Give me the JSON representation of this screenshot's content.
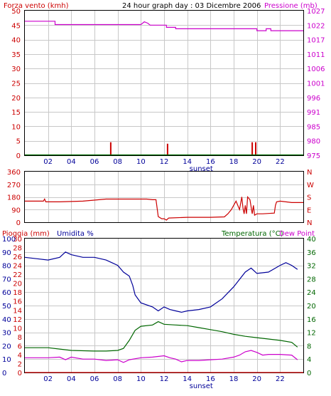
{
  "colors": {
    "wind": "#cc0000",
    "pressure": "#cc00cc",
    "direction": "#cc0000",
    "rain": "#cc0000",
    "humidity": "#000099",
    "temperature": "#006600",
    "dewpoint": "#cc00cc",
    "wind_base": "#006600"
  },
  "header": {
    "wind_label": "Forza vento (kmh)",
    "title": "24 hour graph day : 03 Dicembre 2006",
    "pressure_label": "Pressione (mb)"
  },
  "x_axis": {
    "ticks": [
      "02",
      "04",
      "06",
      "08",
      "10",
      "12",
      "14",
      "16",
      "18",
      "20",
      "22"
    ],
    "tick_values": [
      2,
      4,
      6,
      8,
      10,
      12,
      14,
      16,
      18,
      20,
      22
    ],
    "marker_label": "sunset"
  },
  "bottom_labels": {
    "rain": "Pioggia (mm)",
    "humidity": "Umidita %",
    "temperature": "Temperatura (°C)",
    "dewpoint": "Dew Point"
  },
  "chart_data": [
    {
      "type": "line",
      "name": "wind-pressure",
      "xlim": [
        0,
        24
      ],
      "left_axis": {
        "label": "Forza vento (kmh)",
        "ylim": [
          0,
          50
        ],
        "ticks": [
          "0",
          "5",
          "10",
          "15",
          "20",
          "25",
          "30",
          "35",
          "40",
          "45",
          "50"
        ]
      },
      "right_axis": {
        "label": "Pressione (mb)",
        "ylim": [
          975,
          1027
        ],
        "ticks": [
          "975",
          "980",
          "985",
          "991",
          "996",
          "1001",
          "1006",
          "1011",
          "1017",
          "1022",
          "1027"
        ]
      },
      "grid": true,
      "series": [
        {
          "name": "Pressione (mb)",
          "axis": "right",
          "x": [
            0,
            2.6,
            2.6,
            10.0,
            10.3,
            10.6,
            10.8,
            11.0,
            12.2,
            12.2,
            13.0,
            13.0,
            20.0,
            20.0,
            20.8,
            20.8,
            21.2,
            21.2,
            24
          ],
          "y": [
            1023.2,
            1023.2,
            1022.0,
            1022.0,
            1023.0,
            1022.5,
            1021.8,
            1021.8,
            1021.8,
            1021.0,
            1021.0,
            1020.5,
            1020.5,
            1019.8,
            1019.8,
            1020.5,
            1020.5,
            1019.8,
            1019.8
          ]
        },
        {
          "name": "Forza vento (kmh)",
          "axis": "left",
          "type": "bar",
          "x": [
            7.4,
            12.3,
            19.6,
            19.9
          ],
          "y": [
            4.5,
            4.0,
            4.5,
            4.5
          ]
        }
      ]
    },
    {
      "type": "line",
      "name": "wind-direction",
      "xlim": [
        0,
        24
      ],
      "left_axis": {
        "ylim": [
          0,
          360
        ],
        "ticks": [
          "0",
          "90",
          "180",
          "270",
          "360"
        ]
      },
      "right_axis": {
        "ticks": [
          "N",
          "E",
          "S",
          "W",
          "N"
        ]
      },
      "grid": true,
      "series": [
        {
          "name": "direction",
          "x": [
            0,
            1.6,
            1.7,
            1.8,
            3.0,
            5.0,
            7.0,
            8.0,
            9.0,
            10.0,
            10.5,
            11.0,
            11.3,
            11.5,
            11.8,
            12.0,
            12.2,
            12.4,
            14.0,
            16.0,
            17.2,
            17.5,
            17.8,
            18.0,
            18.2,
            18.5,
            18.7,
            18.8,
            18.9,
            19.0,
            19.1,
            19.2,
            19.4,
            19.6,
            19.7,
            19.8,
            20.0,
            20.5,
            21.5,
            21.6,
            21.7,
            22.0,
            23.0,
            24
          ],
          "y": [
            150,
            150,
            165,
            145,
            145,
            150,
            165,
            165,
            165,
            165,
            165,
            160,
            160,
            40,
            25,
            25,
            15,
            30,
            35,
            35,
            38,
            60,
            90,
            120,
            150,
            90,
            180,
            100,
            60,
            120,
            60,
            180,
            160,
            60,
            120,
            50,
            60,
            60,
            65,
            120,
            145,
            150,
            140,
            140
          ]
        }
      ]
    },
    {
      "type": "line",
      "name": "rain-humidity-temperature",
      "xlim": [
        0,
        24
      ],
      "left_axis_1": {
        "label": "Pioggia (mm)",
        "ylim": [
          0,
          30
        ],
        "ticks": [
          "0",
          "2",
          "4",
          "6",
          "8",
          "10",
          "12",
          "14",
          "16",
          "18",
          "20",
          "22",
          "24",
          "26",
          "28",
          "30"
        ]
      },
      "left_axis_2": {
        "label": "Umidita %",
        "ylim": [
          0,
          100
        ],
        "ticks": [
          "0",
          "10",
          "20",
          "30",
          "40",
          "50",
          "60",
          "70",
          "80",
          "90",
          "100"
        ]
      },
      "right_axis": {
        "label": "Temperatura (°C)",
        "ylim": [
          0,
          40
        ],
        "ticks": [
          "0",
          "4",
          "8",
          "12",
          "16",
          "20",
          "24",
          "28",
          "32",
          "36",
          "40"
        ]
      },
      "grid": true,
      "series": [
        {
          "name": "Umidita %",
          "axis": "humidity",
          "x": [
            0,
            1.0,
            2.0,
            3.0,
            3.5,
            4.0,
            5.0,
            6.0,
            7.0,
            7.5,
            8.0,
            8.5,
            9.0,
            9.3,
            9.5,
            10.0,
            11.0,
            11.5,
            12.0,
            12.5,
            13.0,
            13.5,
            14.0,
            15.0,
            16.0,
            17.0,
            18.0,
            19.0,
            19.5,
            20.0,
            21.0,
            22.0,
            22.5,
            23.0,
            23.5
          ],
          "y": [
            86,
            85,
            84,
            86,
            90,
            88,
            86,
            86,
            84,
            82,
            80,
            75,
            72,
            65,
            58,
            52,
            49,
            46,
            49,
            47,
            46,
            45,
            46,
            47,
            49,
            55,
            64,
            75,
            78,
            74,
            75,
            80,
            82,
            80,
            77
          ]
        },
        {
          "name": "Temperatura (°C)",
          "axis": "temperature",
          "x": [
            0,
            2.0,
            3.0,
            4.0,
            6.0,
            7.0,
            8.0,
            8.5,
            9.0,
            9.5,
            10.0,
            11.0,
            11.5,
            12.0,
            13.0,
            14.0,
            15.0,
            16.0,
            17.0,
            18.0,
            19.0,
            20.0,
            21.0,
            22.0,
            23.0,
            23.5
          ],
          "y": [
            7.4,
            7.4,
            7.0,
            6.6,
            6.4,
            6.4,
            6.6,
            7.2,
            9.6,
            12.6,
            13.8,
            14.2,
            15.2,
            14.4,
            14.2,
            14.0,
            13.4,
            12.8,
            12.2,
            11.4,
            10.8,
            10.4,
            10.0,
            9.6,
            9.0,
            7.6
          ]
        },
        {
          "name": "Dew Point",
          "axis": "temperature",
          "x": [
            0,
            1.0,
            2.0,
            3.0,
            3.5,
            4.0,
            5.0,
            6.0,
            7.0,
            8.0,
            8.5,
            9.0,
            10.0,
            11.0,
            12.0,
            12.5,
            13.0,
            13.5,
            14.0,
            15.0,
            16.0,
            17.0,
            18.0,
            18.5,
            19.0,
            19.5,
            20.0,
            20.5,
            21.0,
            22.0,
            23.0,
            23.5
          ],
          "y": [
            4.4,
            4.4,
            4.4,
            4.6,
            3.8,
            4.6,
            4.0,
            4.0,
            3.6,
            3.8,
            3.0,
            3.8,
            4.4,
            4.6,
            5.0,
            4.4,
            4.0,
            3.2,
            3.6,
            3.6,
            3.8,
            4.0,
            4.6,
            5.2,
            6.2,
            6.6,
            6.0,
            5.2,
            5.4,
            5.4,
            5.2,
            3.8
          ]
        },
        {
          "name": "Pioggia (mm)",
          "axis": "rain",
          "x": [
            0,
            24
          ],
          "y": [
            0,
            0
          ]
        }
      ]
    }
  ]
}
